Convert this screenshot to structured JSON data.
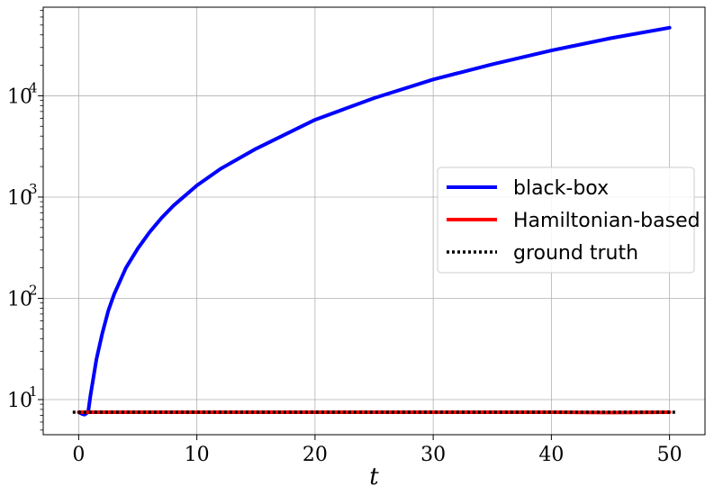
{
  "chart_data": {
    "type": "line",
    "title": "",
    "xlabel": "t",
    "ylabel": "",
    "xlim": [
      -3,
      53
    ],
    "ylim": [
      4.5,
      75000
    ],
    "yscale": "log",
    "grid": true,
    "legend_position": "center-right",
    "x_ticks": [
      0,
      10,
      20,
      30,
      40,
      50
    ],
    "x_tick_labels": [
      "0",
      "10",
      "20",
      "30",
      "40",
      "50"
    ],
    "y_ticks": [
      10,
      100,
      1000,
      10000
    ],
    "y_tick_labels": [
      {
        "base": "10",
        "exp": "1"
      },
      {
        "base": "10",
        "exp": "2"
      },
      {
        "base": "10",
        "exp": "3"
      },
      {
        "base": "10",
        "exp": "4"
      }
    ],
    "series": [
      {
        "name": "black-box",
        "color": "#0000ff",
        "style": "solid",
        "x": [
          0,
          0.3,
          0.5,
          0.8,
          1,
          1.5,
          2,
          2.5,
          3,
          4,
          5,
          6,
          7,
          8,
          10,
          12,
          15,
          20,
          25,
          30,
          35,
          40,
          45,
          50
        ],
        "y": [
          7.5,
          7.2,
          7.1,
          7.5,
          11,
          25,
          45,
          75,
          110,
          200,
          310,
          450,
          620,
          820,
          1300,
          1900,
          3000,
          5800,
          9500,
          14500,
          20500,
          28000,
          37000,
          47000
        ]
      },
      {
        "name": "Hamiltonian-based",
        "color": "#ff0000",
        "style": "solid",
        "x": [
          0,
          10,
          20,
          30,
          40,
          45,
          50
        ],
        "y": [
          7.5,
          7.5,
          7.5,
          7.5,
          7.5,
          7.45,
          7.5
        ]
      },
      {
        "name": "ground truth",
        "color": "#000000",
        "style": "dotted",
        "x": [
          -0.5,
          50.5
        ],
        "y": [
          7.5,
          7.5
        ]
      }
    ]
  }
}
